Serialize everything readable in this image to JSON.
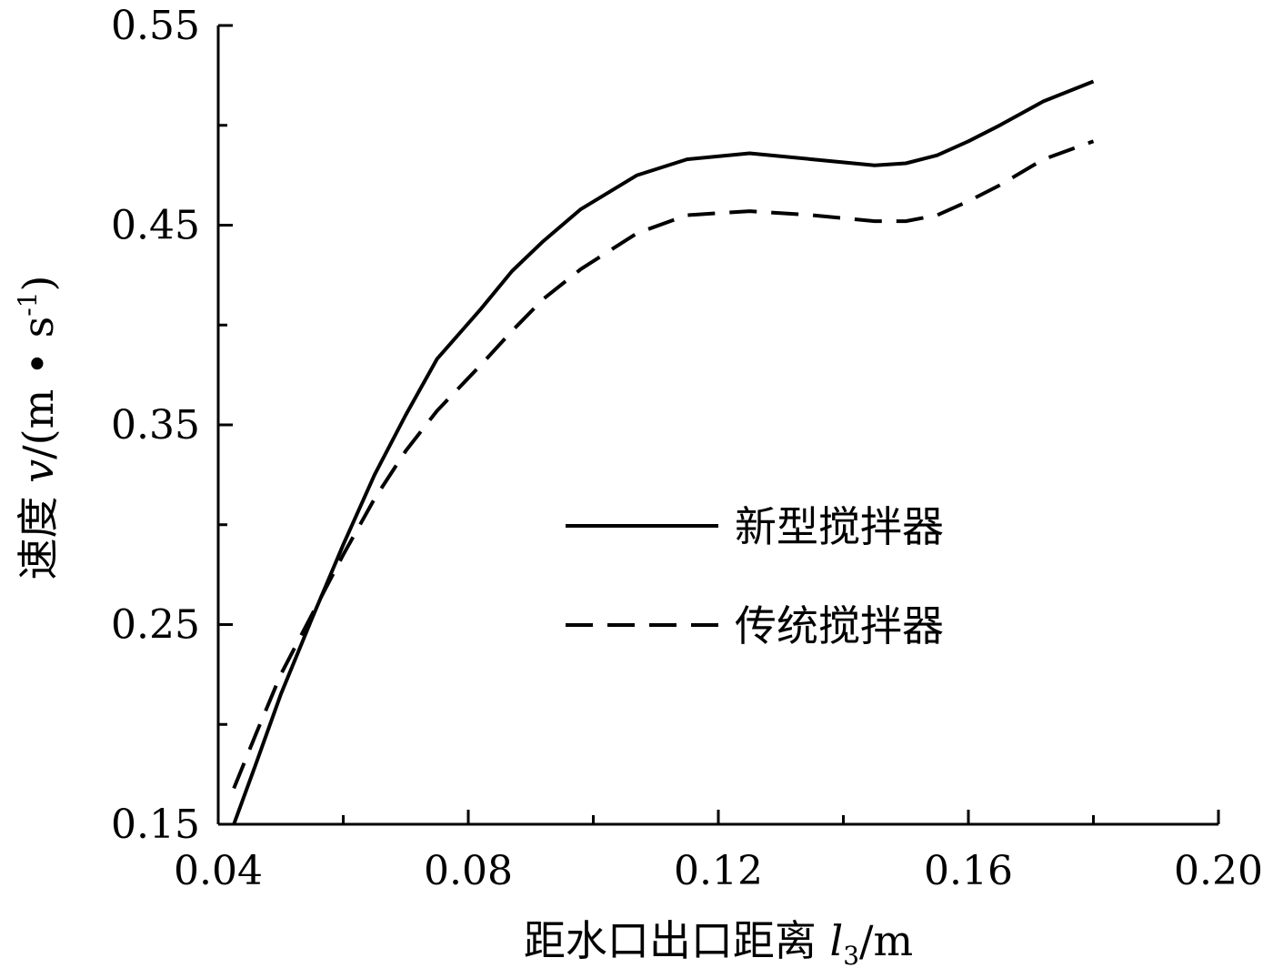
{
  "chart_data": {
    "type": "line",
    "title": "",
    "xlabel": {
      "main": "距水口出口距离 ",
      "symbol": "l",
      "subscript": "3",
      "unit": "/m"
    },
    "ylabel": {
      "main": "速度 ",
      "symbol": "v",
      "unit_open": "/(m • s",
      "superscript": "-1",
      "unit_close": ")"
    },
    "xlim": [
      0.04,
      0.2
    ],
    "ylim": [
      0.15,
      0.55
    ],
    "x_ticks": [
      0.04,
      0.08,
      0.12,
      0.16,
      0.2
    ],
    "x_tick_labels": [
      "0.04",
      "0.08",
      "0.12",
      "0.16",
      "0.20"
    ],
    "x_minor_ticks": [
      0.06,
      0.1,
      0.14,
      0.18
    ],
    "y_ticks": [
      0.15,
      0.25,
      0.35,
      0.45,
      0.55
    ],
    "y_tick_labels": [
      "0.15",
      "0.25",
      "0.35",
      "0.45",
      "0.55"
    ],
    "y_minor_ticks": [
      0.2,
      0.3,
      0.4,
      0.5
    ],
    "grid": false,
    "legend_position": "center-right",
    "series": [
      {
        "name": "新型搅拌器",
        "style": "solid",
        "color": "#000000",
        "x": [
          0.0425,
          0.046,
          0.05,
          0.055,
          0.06,
          0.065,
          0.07,
          0.075,
          0.082,
          0.087,
          0.092,
          0.098,
          0.107,
          0.115,
          0.125,
          0.135,
          0.145,
          0.15,
          0.155,
          0.16,
          0.165,
          0.172,
          0.18
        ],
        "y": [
          0.15,
          0.18,
          0.215,
          0.253,
          0.29,
          0.325,
          0.355,
          0.383,
          0.408,
          0.427,
          0.442,
          0.458,
          0.475,
          0.483,
          0.486,
          0.483,
          0.48,
          0.481,
          0.485,
          0.492,
          0.5,
          0.512,
          0.522
        ]
      },
      {
        "name": "传统搅拌器",
        "style": "dashed",
        "color": "#000000",
        "x": [
          0.0425,
          0.046,
          0.05,
          0.055,
          0.06,
          0.065,
          0.07,
          0.075,
          0.082,
          0.087,
          0.092,
          0.098,
          0.107,
          0.115,
          0.125,
          0.135,
          0.145,
          0.15,
          0.155,
          0.16,
          0.165,
          0.172,
          0.18
        ],
        "y": [
          0.168,
          0.195,
          0.225,
          0.255,
          0.285,
          0.313,
          0.337,
          0.357,
          0.38,
          0.397,
          0.413,
          0.428,
          0.446,
          0.455,
          0.457,
          0.455,
          0.452,
          0.452,
          0.455,
          0.462,
          0.47,
          0.483,
          0.492
        ]
      }
    ]
  }
}
